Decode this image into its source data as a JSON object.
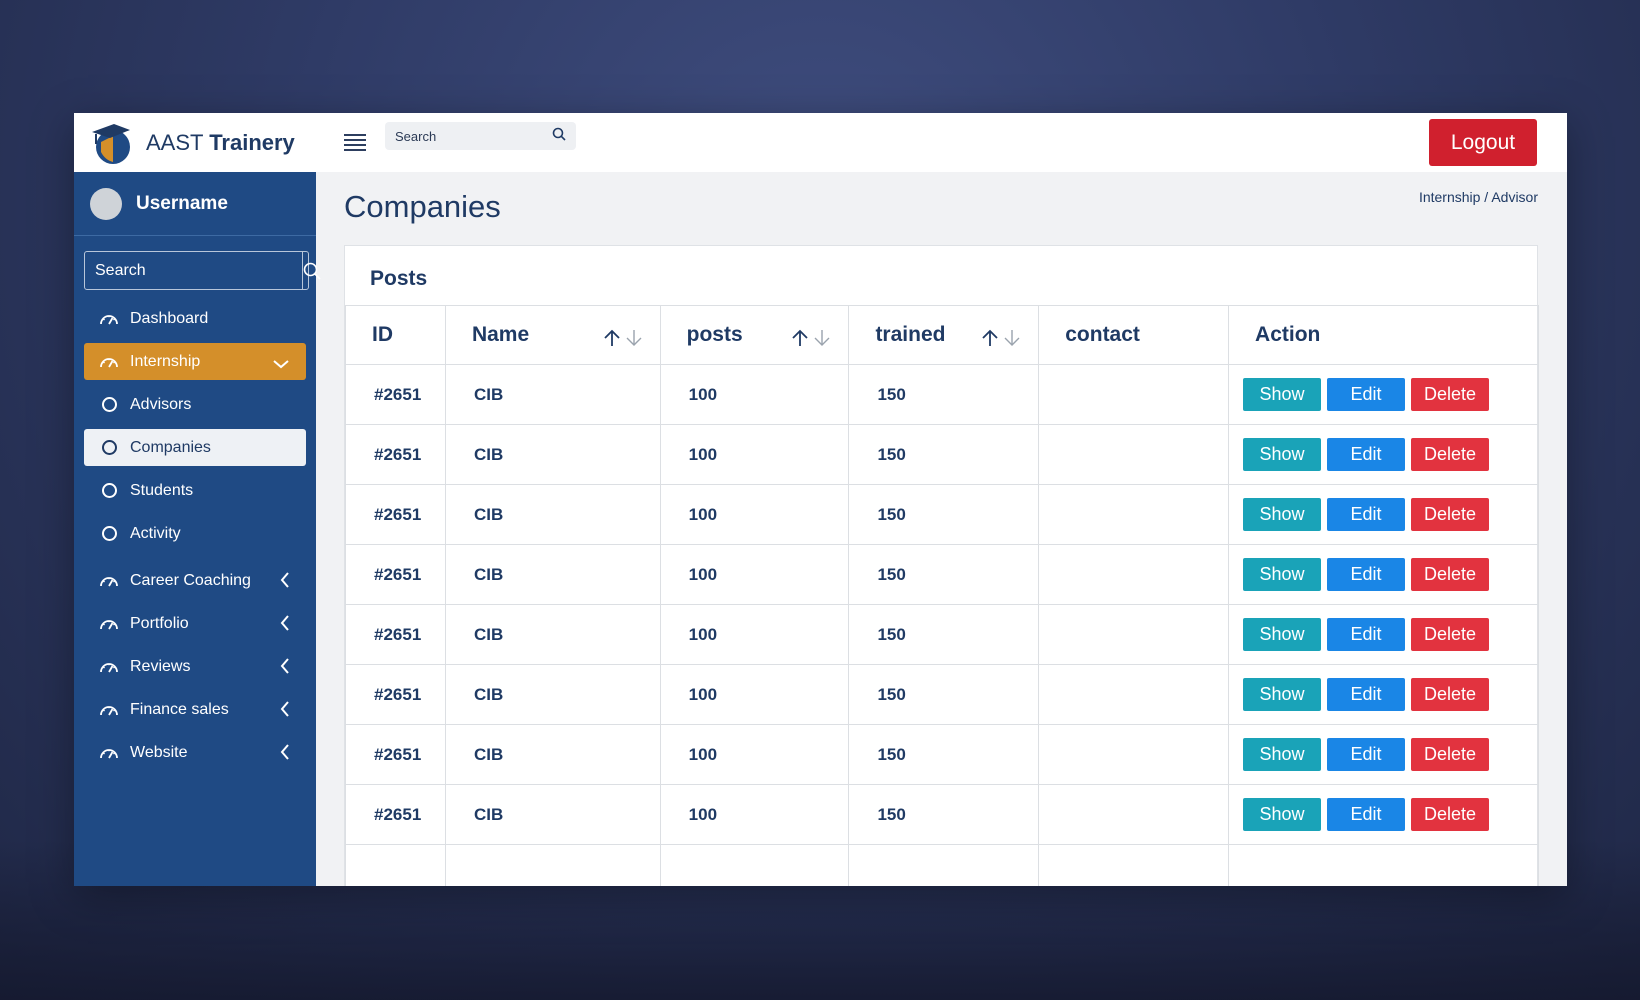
{
  "brand": {
    "light": "AAST ",
    "bold": "Trainery"
  },
  "topbar": {
    "search_placeholder": "Search",
    "logout_label": "Logout"
  },
  "sidebar": {
    "username": "Username",
    "search_placeholder": "Search",
    "items": [
      {
        "label": "Dashboard",
        "icon": "gauge-icon",
        "state": "normal",
        "chevron": "none"
      },
      {
        "label": "Internship",
        "icon": "gauge-icon",
        "state": "active",
        "chevron": "down"
      },
      {
        "label": "Advisors",
        "icon": "circle-icon",
        "state": "sub",
        "chevron": "none"
      },
      {
        "label": "Companies",
        "icon": "circle-icon",
        "state": "selected",
        "chevron": "none"
      },
      {
        "label": "Students",
        "icon": "circle-icon",
        "state": "sub",
        "chevron": "none"
      },
      {
        "label": "Activity",
        "icon": "circle-icon",
        "state": "sub",
        "chevron": "none"
      },
      {
        "label": "Career Coaching",
        "icon": "gauge-icon",
        "state": "normal",
        "chevron": "left"
      },
      {
        "label": "Portfolio",
        "icon": "gauge-icon",
        "state": "normal",
        "chevron": "left"
      },
      {
        "label": "Reviews",
        "icon": "gauge-icon",
        "state": "normal",
        "chevron": "left"
      },
      {
        "label": "Finance sales",
        "icon": "gauge-icon",
        "state": "normal",
        "chevron": "left"
      },
      {
        "label": "Website",
        "icon": "gauge-icon",
        "state": "normal",
        "chevron": "left"
      }
    ]
  },
  "page": {
    "title": "Companies",
    "breadcrumb": "Internship / Advisor"
  },
  "card": {
    "title": "Posts"
  },
  "table": {
    "columns": [
      {
        "label": "ID",
        "sortable": false
      },
      {
        "label": "Name",
        "sortable": true
      },
      {
        "label": "posts",
        "sortable": true
      },
      {
        "label": "trained",
        "sortable": true
      },
      {
        "label": "contact",
        "sortable": false
      },
      {
        "label": "Action",
        "sortable": false
      }
    ],
    "rows": [
      {
        "id": "#2651",
        "name": "CIB",
        "posts": "100",
        "trained": "150",
        "contact": ""
      },
      {
        "id": "#2651",
        "name": "CIB",
        "posts": "100",
        "trained": "150",
        "contact": ""
      },
      {
        "id": "#2651",
        "name": "CIB",
        "posts": "100",
        "trained": "150",
        "contact": ""
      },
      {
        "id": "#2651",
        "name": "CIB",
        "posts": "100",
        "trained": "150",
        "contact": ""
      },
      {
        "id": "#2651",
        "name": "CIB",
        "posts": "100",
        "trained": "150",
        "contact": ""
      },
      {
        "id": "#2651",
        "name": "CIB",
        "posts": "100",
        "trained": "150",
        "contact": ""
      },
      {
        "id": "#2651",
        "name": "CIB",
        "posts": "100",
        "trained": "150",
        "contact": ""
      },
      {
        "id": "#2651",
        "name": "CIB",
        "posts": "100",
        "trained": "150",
        "contact": ""
      }
    ],
    "actions": {
      "show": "Show",
      "edit": "Edit",
      "delete": "Delete"
    }
  },
  "colors": {
    "sidebar": "#1f4a84",
    "active_item": "#d48f2a",
    "logout": "#d0202e",
    "show": "#1aa3b8",
    "edit": "#1a86e6",
    "delete": "#e2333f",
    "text": "#1f3a64"
  }
}
